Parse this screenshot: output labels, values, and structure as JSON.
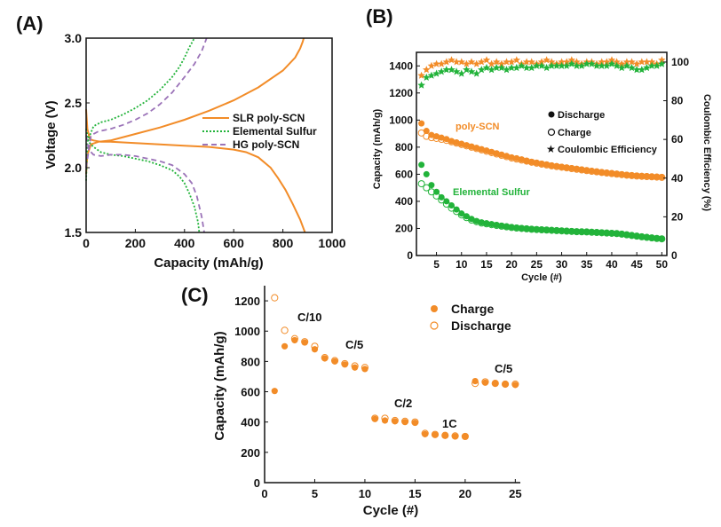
{
  "colors": {
    "orange": "#f28c28",
    "orange_light": "#f6b06a",
    "green": "#22b33a",
    "green_dark": "#1a9a2e",
    "purple": "#9b73b8",
    "axis": "#111111"
  },
  "chart_data": [
    {
      "id": "A",
      "panel_label": "(A)",
      "type": "line",
      "xlabel": "Capacity (mAh/g)",
      "ylabel": "Voltage (V)",
      "xlim": [
        0,
        1000
      ],
      "ylim": [
        1.5,
        3.0
      ],
      "xticks": [
        "0",
        "200",
        "400",
        "600",
        "800",
        "1000"
      ],
      "yticks": [
        "1.5",
        "2.0",
        "2.5",
        "3.0"
      ],
      "legend": [
        "SLR poly-SCN",
        "Elemental Sulfur",
        "HG poly-SCN"
      ],
      "series": [
        {
          "name": "SLR poly-SCN (discharge)",
          "style": "solid",
          "color": "#f28c28",
          "x": [
            0,
            5,
            15,
            30,
            60,
            100,
            200,
            300,
            400,
            500,
            600,
            650,
            700,
            750,
            780,
            810,
            840,
            870,
            890
          ],
          "y": [
            2.45,
            2.3,
            2.22,
            2.21,
            2.2,
            2.2,
            2.19,
            2.18,
            2.17,
            2.16,
            2.14,
            2.12,
            2.08,
            2.0,
            1.92,
            1.83,
            1.72,
            1.6,
            1.5
          ]
        },
        {
          "name": "SLR poly-SCN (charge)",
          "style": "solid",
          "color": "#f28c28",
          "x": [
            0,
            5,
            20,
            50,
            100,
            200,
            300,
            400,
            500,
            600,
            700,
            800,
            850,
            870,
            880,
            885
          ],
          "y": [
            1.95,
            2.1,
            2.18,
            2.2,
            2.21,
            2.26,
            2.31,
            2.37,
            2.44,
            2.52,
            2.62,
            2.75,
            2.85,
            2.92,
            2.97,
            3.0
          ]
        },
        {
          "name": "Elemental Sulfur (discharge)",
          "style": "dotted",
          "color": "#22b33a",
          "x": [
            0,
            10,
            30,
            60,
            100,
            150,
            200,
            250,
            300,
            350,
            380,
            400,
            420,
            440,
            455,
            460
          ],
          "y": [
            2.3,
            2.2,
            2.16,
            2.12,
            2.1,
            2.09,
            2.07,
            2.05,
            2.02,
            1.98,
            1.93,
            1.88,
            1.8,
            1.7,
            1.58,
            1.5
          ]
        },
        {
          "name": "Elemental Sulfur (charge)",
          "style": "dotted",
          "color": "#22b33a",
          "x": [
            0,
            5,
            30,
            60,
            100,
            150,
            200,
            250,
            300,
            350,
            380,
            400,
            420,
            440
          ],
          "y": [
            1.9,
            2.2,
            2.32,
            2.35,
            2.37,
            2.41,
            2.46,
            2.52,
            2.6,
            2.7,
            2.78,
            2.85,
            2.93,
            3.0
          ]
        },
        {
          "name": "HG poly-SCN (discharge)",
          "style": "dashed",
          "color": "#9b73b8",
          "x": [
            0,
            10,
            30,
            60,
            100,
            150,
            200,
            250,
            300,
            350,
            400,
            430,
            450,
            470,
            480
          ],
          "y": [
            2.25,
            2.14,
            2.1,
            2.09,
            2.1,
            2.1,
            2.09,
            2.07,
            2.05,
            2.02,
            1.95,
            1.88,
            1.78,
            1.62,
            1.5
          ]
        },
        {
          "name": "HG poly-SCN (charge)",
          "style": "dashed",
          "color": "#9b73b8",
          "x": [
            0,
            20,
            50,
            100,
            150,
            200,
            250,
            300,
            350,
            400,
            440,
            470,
            490
          ],
          "y": [
            2.0,
            2.25,
            2.28,
            2.3,
            2.33,
            2.37,
            2.42,
            2.49,
            2.58,
            2.7,
            2.8,
            2.9,
            3.0
          ]
        }
      ]
    },
    {
      "id": "B",
      "panel_label": "(B)",
      "type": "scatter",
      "xlabel": "Cycle (#)",
      "ylabel": "Capacity (mAh/g)",
      "ylabel_right": "Coulombic Efficiency (%)",
      "xlim": [
        1,
        51
      ],
      "ylim": [
        0,
        1500
      ],
      "ylim_right": [
        0,
        105
      ],
      "xticks": [
        "5",
        "10",
        "15",
        "20",
        "25",
        "30",
        "35",
        "40",
        "45",
        "50"
      ],
      "yticks": [
        "0",
        "200",
        "400",
        "600",
        "800",
        "1000",
        "1200",
        "1400"
      ],
      "yticks_right": [
        "0",
        "20",
        "40",
        "60",
        "80",
        "100"
      ],
      "legend": [
        "Discharge",
        "Charge",
        "Coulombic Efficiency"
      ],
      "annotations": [
        "poly-SCN",
        "Elemental Sulfur"
      ],
      "series": [
        {
          "name": "poly-SCN Discharge",
          "color": "#f28c28",
          "marker": "filled-circle",
          "x": [
            2,
            3,
            4,
            5,
            6,
            7,
            8,
            9,
            10,
            11,
            12,
            13,
            14,
            15,
            16,
            17,
            18,
            19,
            20,
            21,
            22,
            23,
            24,
            25,
            26,
            27,
            28,
            29,
            30,
            31,
            32,
            33,
            34,
            35,
            36,
            37,
            38,
            39,
            40,
            41,
            42,
            43,
            44,
            45,
            46,
            47,
            48,
            49,
            50
          ],
          "y": [
            975,
            920,
            890,
            880,
            870,
            860,
            845,
            835,
            825,
            815,
            805,
            795,
            785,
            775,
            765,
            755,
            745,
            735,
            725,
            718,
            710,
            700,
            692,
            685,
            678,
            672,
            665,
            660,
            655,
            650,
            645,
            640,
            635,
            630,
            625,
            620,
            615,
            612,
            608,
            604,
            600,
            596,
            592,
            590,
            588,
            586,
            584,
            582,
            580
          ]
        },
        {
          "name": "poly-SCN Charge",
          "color": "#f28c28",
          "marker": "open-circle",
          "x": [
            2,
            3,
            4,
            5,
            6,
            7,
            8,
            9,
            10,
            11,
            12,
            13,
            14,
            15,
            16,
            17,
            18,
            19,
            20,
            21,
            22,
            23,
            24,
            25,
            26,
            27,
            28,
            29,
            30,
            31,
            32,
            33,
            34,
            35,
            36,
            37,
            38,
            39,
            40,
            41,
            42,
            43,
            44,
            45,
            46,
            47,
            48,
            49,
            50
          ],
          "y": [
            905,
            880,
            870,
            865,
            858,
            850,
            840,
            830,
            820,
            810,
            800,
            790,
            780,
            770,
            760,
            750,
            740,
            730,
            720,
            712,
            705,
            697,
            689,
            682,
            675,
            669,
            662,
            657,
            652,
            647,
            642,
            637,
            632,
            627,
            622,
            618,
            613,
            609,
            605,
            601,
            597,
            593,
            590,
            587,
            585,
            583,
            581,
            579,
            577
          ]
        },
        {
          "name": "Elemental Sulfur Discharge",
          "color": "#22b33a",
          "marker": "filled-circle",
          "x": [
            2,
            3,
            4,
            5,
            6,
            7,
            8,
            9,
            10,
            11,
            12,
            13,
            14,
            15,
            16,
            17,
            18,
            19,
            20,
            21,
            22,
            23,
            24,
            25,
            26,
            27,
            28,
            29,
            30,
            31,
            32,
            33,
            34,
            35,
            36,
            37,
            38,
            39,
            40,
            41,
            42,
            43,
            44,
            45,
            46,
            47,
            48,
            49,
            50
          ],
          "y": [
            670,
            600,
            520,
            470,
            430,
            400,
            370,
            340,
            310,
            290,
            270,
            255,
            245,
            238,
            232,
            226,
            220,
            215,
            210,
            206,
            202,
            199,
            196,
            194,
            192,
            190,
            188,
            186,
            184,
            182,
            180,
            178,
            176,
            175,
            174,
            172,
            170,
            168,
            166,
            164,
            160,
            155,
            150,
            145,
            140,
            136,
            132,
            128,
            125
          ]
        },
        {
          "name": "Elemental Sulfur Charge",
          "color": "#22b33a",
          "marker": "open-circle",
          "x": [
            2,
            3,
            4,
            5,
            6,
            7,
            8,
            9,
            10,
            11,
            12,
            13,
            14,
            15,
            16,
            17,
            18,
            19,
            20,
            21,
            22,
            23,
            24,
            25,
            26,
            27,
            28,
            29,
            30,
            31,
            32,
            33,
            34,
            35,
            36,
            37,
            38,
            39,
            40,
            41,
            42,
            43,
            44,
            45,
            46,
            47,
            48,
            49,
            50
          ],
          "y": [
            530,
            500,
            470,
            440,
            410,
            380,
            350,
            325,
            300,
            280,
            262,
            250,
            240,
            234,
            228,
            222,
            217,
            212,
            207,
            203,
            200,
            197,
            194,
            192,
            190,
            188,
            186,
            184,
            182,
            180,
            178,
            176,
            175,
            174,
            172,
            170,
            168,
            166,
            164,
            162,
            158,
            153,
            148,
            143,
            138,
            134,
            130,
            126,
            123
          ]
        },
        {
          "name": "poly-SCN Coulombic Efficiency",
          "color": "#f28c28",
          "marker": "star",
          "axis": "right",
          "x": [
            2,
            3,
            4,
            5,
            6,
            7,
            8,
            9,
            10,
            11,
            12,
            13,
            14,
            15,
            16,
            17,
            18,
            19,
            20,
            21,
            22,
            23,
            24,
            25,
            26,
            27,
            28,
            29,
            30,
            31,
            32,
            33,
            34,
            35,
            36,
            37,
            38,
            39,
            40,
            41,
            42,
            43,
            44,
            45,
            46,
            47,
            48,
            49,
            50
          ],
          "y": [
            93,
            96,
            98,
            99,
            99,
            100,
            101,
            100,
            100,
            99,
            100,
            99,
            100,
            101,
            99,
            100,
            99,
            100,
            100,
            101,
            99,
            100,
            100,
            99,
            100,
            101,
            100,
            99,
            100,
            100,
            101,
            100,
            99,
            100,
            100,
            99,
            100,
            100,
            101,
            100,
            99,
            100,
            100,
            99,
            100,
            100,
            100,
            99,
            101
          ]
        },
        {
          "name": "Elemental Sulfur Coulombic Efficiency",
          "color": "#22b33a",
          "marker": "star",
          "axis": "right",
          "x": [
            2,
            3,
            4,
            5,
            6,
            7,
            8,
            9,
            10,
            11,
            12,
            13,
            14,
            15,
            16,
            17,
            18,
            19,
            20,
            21,
            22,
            23,
            24,
            25,
            26,
            27,
            28,
            29,
            30,
            31,
            32,
            33,
            34,
            35,
            36,
            37,
            38,
            39,
            40,
            41,
            42,
            43,
            44,
            45,
            46,
            47,
            48,
            49,
            50
          ],
          "y": [
            88,
            92,
            93,
            94,
            95,
            96,
            96,
            95,
            94,
            96,
            95,
            94,
            96,
            97,
            96,
            97,
            97,
            96,
            97,
            97,
            98,
            97,
            97,
            98,
            98,
            97,
            98,
            98,
            98,
            98,
            99,
            98,
            98,
            99,
            99,
            98,
            98,
            98,
            99,
            98,
            97,
            98,
            97,
            96,
            96,
            97,
            98,
            98,
            99
          ]
        }
      ]
    },
    {
      "id": "C",
      "panel_label": "(C)",
      "type": "scatter",
      "xlabel": "Cycle (#)",
      "ylabel": "Capacity (mAh/g)",
      "xlim": [
        0,
        25.5
      ],
      "ylim": [
        0,
        1300
      ],
      "xticks": [
        "0",
        "5",
        "10",
        "15",
        "20",
        "25"
      ],
      "yticks": [
        "0",
        "200",
        "400",
        "600",
        "800",
        "1000",
        "1200"
      ],
      "legend": [
        "Charge",
        "Discharge"
      ],
      "annotations": [
        "C/10",
        "C/5",
        "C/2",
        "1C",
        "C/5"
      ],
      "series": [
        {
          "name": "Charge",
          "color": "#f28c28",
          "marker": "filled-circle",
          "x": [
            1,
            2,
            3,
            4,
            5,
            6,
            7,
            8,
            9,
            10,
            11,
            12,
            13,
            14,
            15,
            16,
            17,
            18,
            19,
            20,
            21,
            22,
            23,
            24,
            25
          ],
          "y": [
            605,
            900,
            940,
            925,
            880,
            820,
            800,
            780,
            760,
            750,
            420,
            410,
            405,
            400,
            395,
            320,
            315,
            310,
            305,
            305,
            670,
            660,
            655,
            650,
            645
          ]
        },
        {
          "name": "Discharge",
          "color": "#f28c28",
          "marker": "open-circle",
          "x": [
            1,
            2,
            3,
            4,
            5,
            6,
            7,
            8,
            9,
            10,
            11,
            12,
            13,
            14,
            15,
            16,
            17,
            18,
            19,
            20,
            21,
            22,
            23,
            24,
            25
          ],
          "y": [
            1220,
            1005,
            950,
            930,
            900,
            825,
            805,
            785,
            770,
            760,
            425,
            425,
            410,
            405,
            400,
            325,
            318,
            312,
            308,
            305,
            655,
            665,
            655,
            650,
            650
          ]
        }
      ]
    }
  ]
}
